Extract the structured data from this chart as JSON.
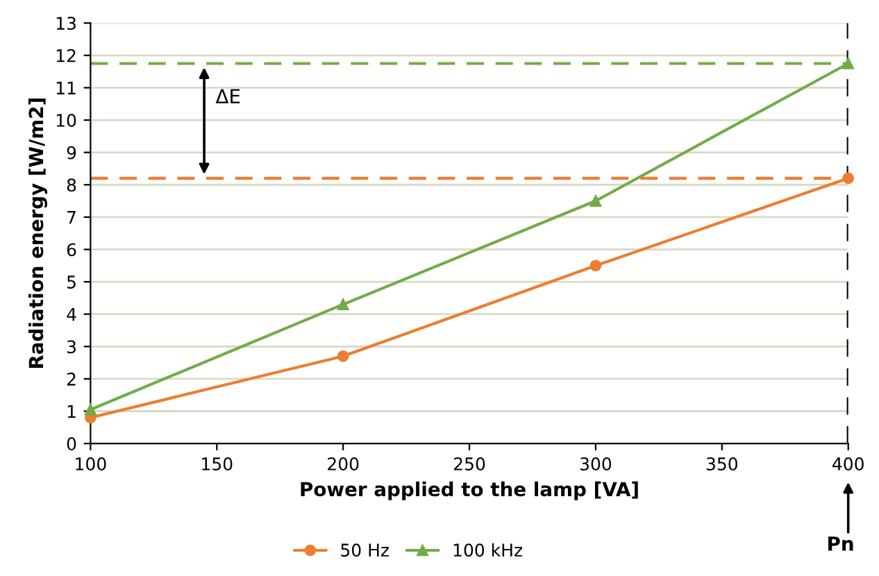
{
  "chart_data": {
    "type": "line",
    "xlabel": "Power applied to the lamp [VA]",
    "ylabel": "Radiation energy [W/m2]",
    "x": [
      100,
      200,
      300,
      400
    ],
    "series": [
      {
        "name": "50 Hz",
        "color": "#ed7d31",
        "marker": "circle",
        "values": [
          0.8,
          2.7,
          5.5,
          8.2
        ]
      },
      {
        "name": "100 kHz",
        "color": "#70ad47",
        "marker": "triangle",
        "values": [
          1.05,
          4.3,
          7.5,
          11.75
        ]
      }
    ],
    "xlim": [
      100,
      400
    ],
    "xticks": [
      100,
      150,
      200,
      250,
      300,
      350,
      400
    ],
    "ylim": [
      0,
      13
    ],
    "yticks": [
      0,
      1,
      2,
      3,
      4,
      5,
      6,
      7,
      8,
      9,
      10,
      11,
      12,
      13
    ],
    "ref_lines": [
      {
        "axis": "y",
        "value": 11.75,
        "color": "#70ad47",
        "line_style": "dashed"
      },
      {
        "axis": "y",
        "value": 8.2,
        "color": "#ed7d31",
        "line_style": "dashed"
      },
      {
        "axis": "x",
        "value": 400,
        "color": "#000000",
        "line_style": "dashed"
      }
    ],
    "annotations": [
      "ΔE",
      "Pn"
    ],
    "grid": "y",
    "legend": "bottom"
  }
}
